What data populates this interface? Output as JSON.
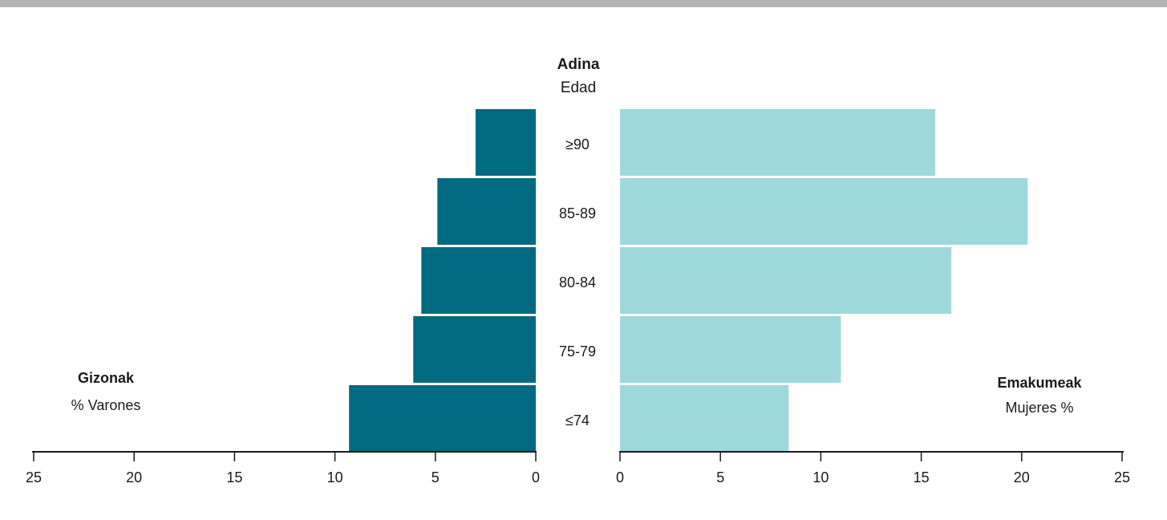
{
  "colors": {
    "male": "#006b80",
    "female": "#9ed8dc",
    "axis": "#1a1a1a",
    "top_rule": "#b3b3b3"
  },
  "chart_data": {
    "type": "bar",
    "subtype": "population-pyramid",
    "center_header": {
      "title": "Adina",
      "subtitle": "Edad"
    },
    "categories": [
      "≥90",
      "85-89",
      "80-84",
      "75-79",
      "≤74"
    ],
    "series": [
      {
        "name": "Gizonak",
        "subtitle": "% Varones",
        "side": "left",
        "values": [
          3.0,
          4.9,
          5.7,
          6.1,
          9.3
        ]
      },
      {
        "name": "Emakumeak",
        "subtitle": "Mujeres %",
        "side": "right",
        "values": [
          15.7,
          20.3,
          16.5,
          11.0,
          8.4
        ]
      }
    ],
    "xlim": [
      0,
      25
    ],
    "left_ticks": [
      "25",
      "20",
      "15",
      "10",
      "5",
      "0"
    ],
    "right_ticks": [
      "0",
      "5",
      "10",
      "15",
      "20",
      "25"
    ],
    "grid": false
  }
}
